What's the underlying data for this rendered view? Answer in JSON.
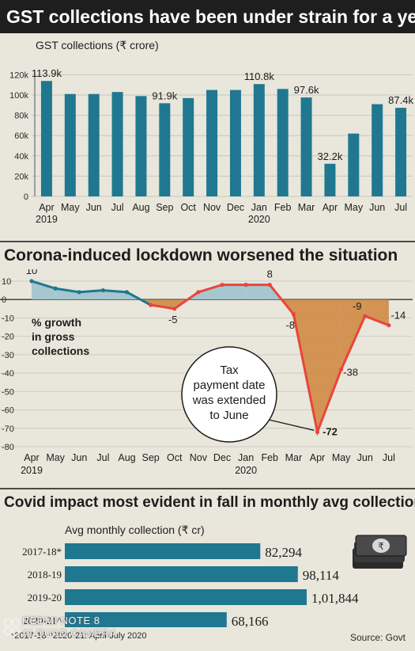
{
  "headers": {
    "banner": "GST collections have been under strain for a year",
    "lockdown": "Corona-induced lockdown worsened the situation",
    "covid": "Covid impact most evident in fall in monthly avg collection"
  },
  "colors": {
    "bar": "#1f7890",
    "line_pre": "#1f7890",
    "line_post": "#e8453c",
    "fill_pos": "#9ec3cd",
    "fill_neg": "#cf8a44"
  },
  "chart_data": [
    {
      "type": "bar",
      "subtitle": "GST collections (₹ crore)",
      "categories": [
        "Apr",
        "May",
        "Jun",
        "Jul",
        "Aug",
        "Sep",
        "Oct",
        "Nov",
        "Dec",
        "Jan",
        "Feb",
        "Mar",
        "Apr",
        "May",
        "Jun",
        "Jul"
      ],
      "year_labels": [
        {
          "index": 0,
          "text": "2019"
        },
        {
          "index": 9,
          "text": "2020"
        }
      ],
      "values": [
        113.9,
        101,
        101,
        103,
        99,
        91.9,
        97,
        105,
        105,
        110.8,
        106,
        97.6,
        32.2,
        62,
        91,
        87.4
      ],
      "data_labels": {
        "0": "113.9k",
        "5": "91.9k",
        "9": "110.8k",
        "11": "97.6k",
        "12": "32.2k",
        "15": "87.4k"
      },
      "yticks": [
        0,
        20,
        40,
        60,
        80,
        100,
        120
      ],
      "ytick_labels": [
        "0",
        "20k",
        "40k",
        "60k",
        "80k",
        "100k",
        "120k"
      ],
      "ylim": [
        0,
        125
      ]
    },
    {
      "type": "line",
      "categories": [
        "Apr",
        "May",
        "Jun",
        "Jul",
        "Aug",
        "Sep",
        "Oct",
        "Nov",
        "Dec",
        "Jan",
        "Feb",
        "Mar",
        "Apr",
        "May",
        "Jun",
        "Jul"
      ],
      "year_labels": [
        {
          "index": 0,
          "text": "2019"
        },
        {
          "index": 9,
          "text": "2020"
        }
      ],
      "values": [
        10,
        6,
        4,
        5,
        4,
        -3,
        -5,
        4,
        8,
        8,
        8,
        -8,
        -72,
        -38,
        -9,
        -14
      ],
      "data_labels": {
        "0": "10",
        "6": "-5",
        "10": "8",
        "11": "-8",
        "12": "-72",
        "13": "-38",
        "14": "-9",
        "15": "-14"
      },
      "yticks": [
        10,
        0,
        -10,
        -20,
        -30,
        -40,
        -50,
        -60,
        -70,
        -80
      ],
      "ytick_labels": [
        "10",
        "0",
        "-10",
        "-20",
        "-30",
        "-40",
        "-50",
        "-60",
        "-70",
        "-80"
      ],
      "ylim": [
        -80,
        13
      ],
      "annotation_lines": [
        "% growth",
        "in gross",
        "collections"
      ],
      "bubble_lines": [
        "Tax",
        "payment date",
        "was extended",
        "to June"
      ]
    },
    {
      "type": "bar",
      "orientation": "horizontal",
      "subtitle": "Avg monthly collection (₹ cr)",
      "categories": [
        "2017-18*",
        "2018-19",
        "2019-20",
        "2020-21^"
      ],
      "values": [
        82294,
        98114,
        101844,
        68166
      ],
      "value_labels": [
        "82,294",
        "98,114",
        "1,01,844",
        "68,166"
      ],
      "xlim": [
        0,
        101844
      ]
    }
  ],
  "footnote": "*2017-18  ^2020-21: April-July 2020",
  "source": "Source: Govt",
  "watermark": [
    "REDMI NOTE 8",
    "AI QUAD CAMERA"
  ]
}
